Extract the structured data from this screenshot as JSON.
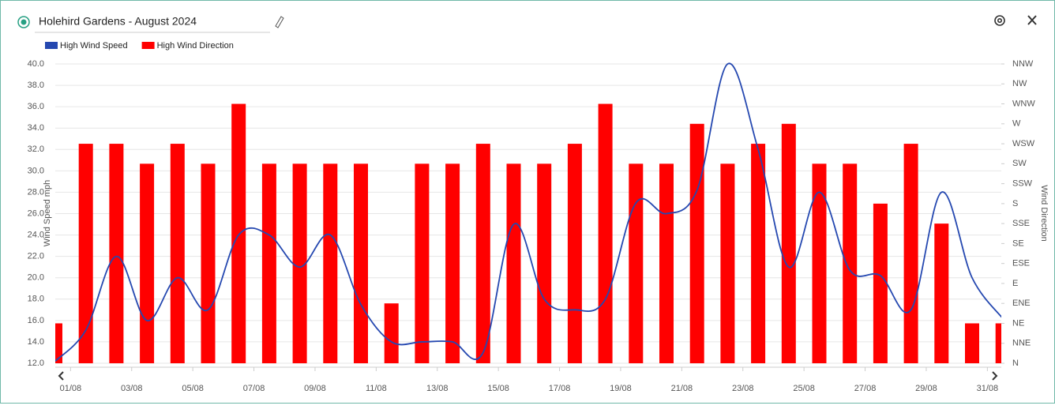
{
  "chart_data": {
    "type": "bar-line",
    "title": "Holehird Gardens - August 2024",
    "y_label": "Wind Speed mph",
    "y2_label": "Wind Direction",
    "categories": [
      "01/08",
      null,
      "03/08",
      null,
      "05/08",
      null,
      "07/08",
      null,
      "09/08",
      null,
      "11/08",
      null,
      "13/08",
      null,
      "15/08",
      null,
      "17/08",
      null,
      "19/08",
      null,
      "21/08",
      null,
      "23/08",
      null,
      "25/08",
      null,
      "27/08",
      null,
      "29/08",
      null,
      "31/08",
      null
    ],
    "series": [
      {
        "name": "High Wind Speed",
        "color": "#2548b0",
        "kind": "line",
        "axis": "y",
        "values": [
          12.2,
          15.1,
          22,
          16,
          20,
          17,
          24,
          24,
          21,
          24,
          17.5,
          14,
          14,
          14,
          13,
          25,
          18,
          17,
          18,
          27,
          26,
          28.2,
          40,
          32,
          21,
          28,
          20.7,
          20.2,
          17,
          28,
          20,
          16.2
        ]
      },
      {
        "name": "High Wind Direction",
        "color": "#ff0000",
        "kind": "bar",
        "axis": "y2",
        "values": [
          2,
          11,
          11,
          10,
          11,
          10,
          13,
          10,
          10,
          10,
          10,
          3,
          10,
          10,
          11,
          10,
          10,
          11,
          13,
          10,
          10,
          12,
          10,
          11,
          12,
          10,
          10,
          8,
          11,
          7,
          2,
          2
        ]
      }
    ],
    "ylim": [
      12,
      40
    ],
    "yticks": [
      {
        "value": 12,
        "label": "12.0"
      },
      {
        "value": 14,
        "label": "14.0"
      },
      {
        "value": 16,
        "label": "16.0"
      },
      {
        "value": 18,
        "label": "18.0"
      },
      {
        "value": 20,
        "label": "20.0"
      },
      {
        "value": 22,
        "label": "22.0"
      },
      {
        "value": 24,
        "label": "24.0"
      },
      {
        "value": 26,
        "label": "26.0"
      },
      {
        "value": 28,
        "label": "28.0"
      },
      {
        "value": 30,
        "label": "30.0"
      },
      {
        "value": 32,
        "label": "32.0"
      },
      {
        "value": 34,
        "label": "34.0"
      },
      {
        "value": 36,
        "label": "36.0"
      },
      {
        "value": 38,
        "label": "38.0"
      },
      {
        "value": 40,
        "label": "40.0"
      }
    ],
    "y2lim": [
      0,
      15
    ],
    "y2ticks": [
      {
        "value": 0,
        "label": "N"
      },
      {
        "value": 1,
        "label": "NNE"
      },
      {
        "value": 2,
        "label": "NE"
      },
      {
        "value": 3,
        "label": "ENE"
      },
      {
        "value": 4,
        "label": "E"
      },
      {
        "value": 5,
        "label": "ESE"
      },
      {
        "value": 6,
        "label": "SE"
      },
      {
        "value": 7,
        "label": "SSE"
      },
      {
        "value": 8,
        "label": "S"
      },
      {
        "value": 9,
        "label": "SSW"
      },
      {
        "value": 10,
        "label": "SW"
      },
      {
        "value": 11,
        "label": "WSW"
      },
      {
        "value": 12,
        "label": "W"
      },
      {
        "value": 13,
        "label": "WNW"
      },
      {
        "value": 14,
        "label": "NW"
      },
      {
        "value": 15,
        "label": "NNW"
      }
    ],
    "grid": true
  }
}
